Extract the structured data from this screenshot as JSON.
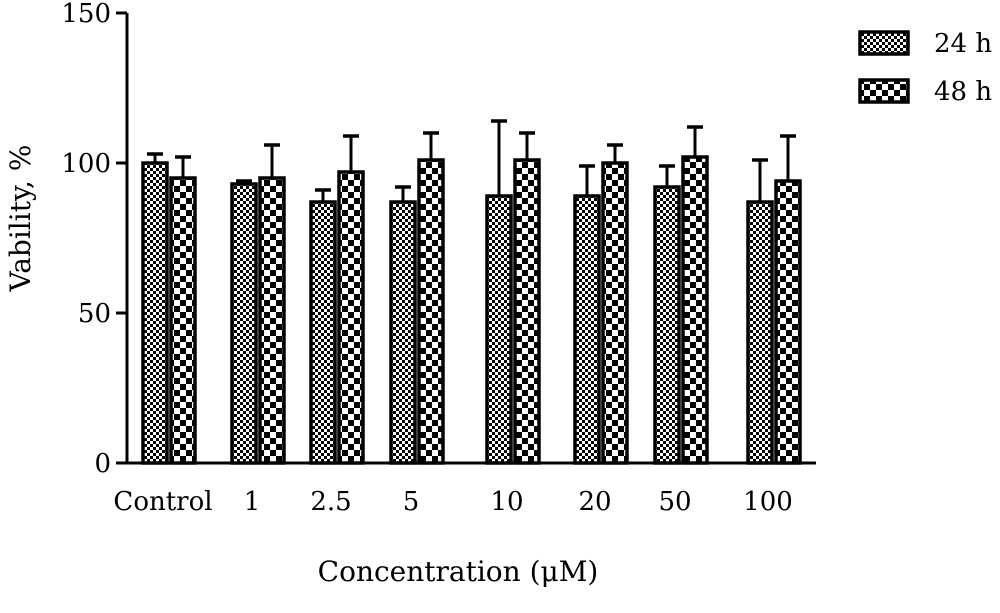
{
  "chart_data": {
    "type": "bar",
    "title": "",
    "xlabel": "Concentration (μM)",
    "ylabel": "Vability, %",
    "ylim": [
      0,
      150
    ],
    "yticks": [
      0,
      50,
      100,
      150
    ],
    "categories": [
      "Control",
      "1",
      "2.5",
      "5",
      "10",
      "20",
      "50",
      "100"
    ],
    "series": [
      {
        "name": "24 h",
        "pattern": "fine-checker",
        "values": [
          100,
          93,
          87,
          87,
          89,
          89,
          92,
          87
        ],
        "errors": [
          3,
          1,
          4,
          5,
          25,
          10,
          7,
          14
        ]
      },
      {
        "name": "48 h",
        "pattern": "coarse-checker",
        "values": [
          95,
          95,
          97,
          101,
          101,
          100,
          102,
          94
        ],
        "errors": [
          7,
          11,
          12,
          9,
          9,
          6,
          10,
          15
        ]
      }
    ],
    "legend_position": "top-right",
    "grid": false,
    "colors": {
      "ink": "#000000",
      "background": "#ffffff"
    }
  }
}
